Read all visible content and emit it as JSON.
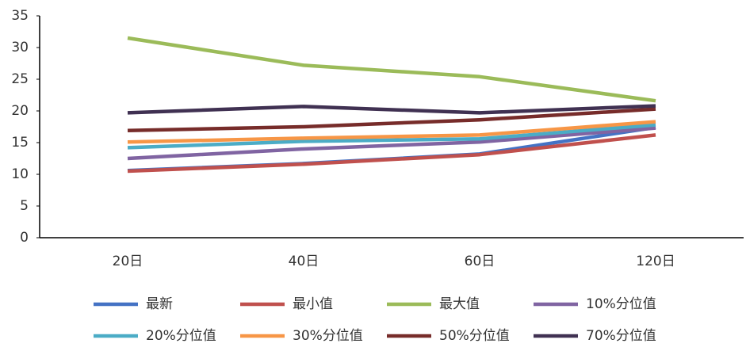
{
  "chart_data": {
    "type": "line",
    "categories": [
      "20日",
      "40日",
      "60日",
      "120日"
    ],
    "series": [
      {
        "name": "最新",
        "color": "#4472c4",
        "values": [
          10.6,
          11.7,
          13.2,
          17.4
        ]
      },
      {
        "name": "最小值",
        "color": "#c0504d",
        "values": [
          10.5,
          11.6,
          13.1,
          16.2
        ]
      },
      {
        "name": "最大值",
        "color": "#9bbb59",
        "values": [
          31.5,
          27.2,
          25.4,
          21.6
        ]
      },
      {
        "name": "10%分位值",
        "color": "#8064a2",
        "values": [
          12.5,
          14.0,
          15.1,
          17.3
        ]
      },
      {
        "name": "20%分位值",
        "color": "#4bacc6",
        "values": [
          14.2,
          15.2,
          15.6,
          17.8
        ]
      },
      {
        "name": "30%分位值",
        "color": "#f79646",
        "values": [
          15.1,
          15.7,
          16.2,
          18.3
        ]
      },
      {
        "name": "50%分位值",
        "color": "#772c2a",
        "values": [
          16.9,
          17.5,
          18.6,
          20.3
        ]
      },
      {
        "name": "70%分位值",
        "color": "#403152",
        "values": [
          19.7,
          20.7,
          19.7,
          20.8
        ]
      }
    ],
    "ylim": [
      0,
      35
    ],
    "yticks": [
      0,
      5,
      10,
      15,
      20,
      25,
      30,
      35
    ],
    "grid": false
  }
}
